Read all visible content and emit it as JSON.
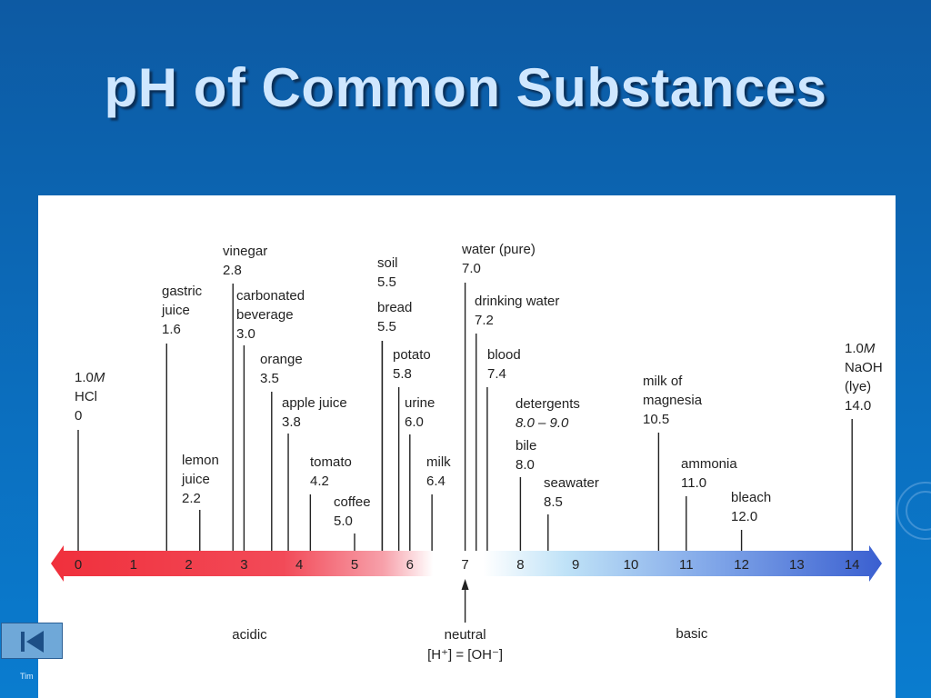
{
  "title": "pH of Common Substances",
  "footer_text": "Tim",
  "nav_button_icon": "skip-back-icon",
  "scale": {
    "min": 0,
    "max": 14,
    "ticks": [
      "0",
      "1",
      "2",
      "3",
      "4",
      "5",
      "6",
      "7",
      "8",
      "9",
      "10",
      "11",
      "12",
      "13",
      "14"
    ],
    "acidic_color": "#f0303c",
    "basic_color": "#3a5fd0",
    "region_labels": {
      "acidic": "acidic",
      "neutral": "neutral",
      "neutral_eq": "[H⁺] = [OH⁻]",
      "basic": "basic"
    }
  },
  "substances": [
    {
      "id": "hcl",
      "lines": [
        "1.0M",
        "HCl",
        "0"
      ],
      "ph": 0,
      "italic_suffix": "M"
    },
    {
      "id": "gastric-juice",
      "lines": [
        "gastric",
        "juice",
        "1.6"
      ],
      "ph": 1.6
    },
    {
      "id": "lemon-juice",
      "lines": [
        "lemon",
        "juice",
        "2.2"
      ],
      "ph": 2.2
    },
    {
      "id": "vinegar",
      "lines": [
        "vinegar",
        "2.8"
      ],
      "ph": 2.8
    },
    {
      "id": "carbonated-beverage",
      "lines": [
        "carbonated",
        "beverage",
        "3.0"
      ],
      "ph": 3.0
    },
    {
      "id": "orange",
      "lines": [
        "orange",
        "3.5"
      ],
      "ph": 3.5
    },
    {
      "id": "apple-juice",
      "lines": [
        "apple juice",
        "3.8"
      ],
      "ph": 3.8
    },
    {
      "id": "tomato",
      "lines": [
        "tomato",
        "4.2"
      ],
      "ph": 4.2
    },
    {
      "id": "coffee",
      "lines": [
        "coffee",
        "5.0"
      ],
      "ph": 5.0
    },
    {
      "id": "soil",
      "lines": [
        "soil",
        "5.5"
      ],
      "ph": 5.5
    },
    {
      "id": "bread",
      "lines": [
        "bread",
        "5.5"
      ],
      "ph": 5.5
    },
    {
      "id": "potato",
      "lines": [
        "potato",
        "5.8"
      ],
      "ph": 5.8
    },
    {
      "id": "urine",
      "lines": [
        "urine",
        "6.0"
      ],
      "ph": 6.0
    },
    {
      "id": "milk",
      "lines": [
        "milk",
        "6.4"
      ],
      "ph": 6.4
    },
    {
      "id": "water-pure",
      "lines": [
        "water (pure)",
        "7.0"
      ],
      "ph": 7.0
    },
    {
      "id": "drinking-water",
      "lines": [
        "drinking water",
        "7.2"
      ],
      "ph": 7.2
    },
    {
      "id": "blood",
      "lines": [
        "blood",
        "7.4"
      ],
      "ph": 7.4
    },
    {
      "id": "detergents",
      "lines": [
        "detergents",
        "8.0 – 9.0"
      ],
      "ph": 8.0,
      "italic_value": true
    },
    {
      "id": "bile",
      "lines": [
        "bile",
        "8.0"
      ],
      "ph": 8.0
    },
    {
      "id": "seawater",
      "lines": [
        "seawater",
        "8.5"
      ],
      "ph": 8.5
    },
    {
      "id": "milk-of-magnesia",
      "lines": [
        "milk of",
        "magnesia",
        "10.5"
      ],
      "ph": 10.5
    },
    {
      "id": "ammonia",
      "lines": [
        "ammonia",
        "11.0"
      ],
      "ph": 11.0
    },
    {
      "id": "bleach",
      "lines": [
        "bleach",
        "12.0"
      ],
      "ph": 12.0
    },
    {
      "id": "naoh",
      "lines": [
        "1.0M",
        "NaOH",
        "(lye)",
        "14.0"
      ],
      "ph": 14.0,
      "italic_suffix": "M"
    }
  ]
}
